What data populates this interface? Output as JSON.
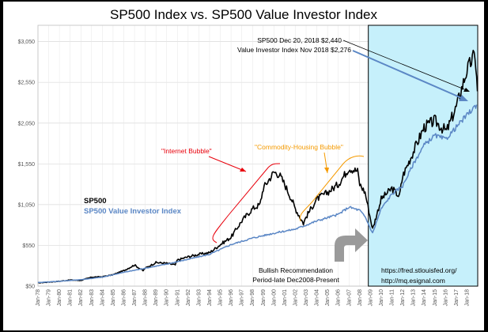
{
  "chart_data": {
    "type": "line",
    "title": "SP500 Index vs. SP500 Value Investor Index",
    "xlabel": "",
    "ylabel": "",
    "ylim": [
      50,
      3250
    ],
    "yticks": [
      "$50",
      "$550",
      "$1,050",
      "$1,550",
      "$2,050",
      "$2,550",
      "$3,050"
    ],
    "ytick_values": [
      50,
      550,
      1050,
      1550,
      2050,
      2550,
      3050
    ],
    "x_range": [
      1978.0,
      2019.0
    ],
    "grid": true,
    "xticks": [
      "Jan-78",
      "Jan-79",
      "Jan-80",
      "Jan-81",
      "Jan-82",
      "Jan-83",
      "Jan-84",
      "Jan-85",
      "Jan-86",
      "Jan-87",
      "Jan-88",
      "Jan-89",
      "Jan-90",
      "Jan-91",
      "Jan-92",
      "Jan-93",
      "Jan-94",
      "Jan-95",
      "Jan-96",
      "Jan-97",
      "Jan-98",
      "Jan-99",
      "Jan-00",
      "Jan-01",
      "Jan-02",
      "Jan-03",
      "Jan-04",
      "Jan-05",
      "Jan-06",
      "Jan-07",
      "Jan-08",
      "Jan-09",
      "Jan-10",
      "Jan-11",
      "Jan-12",
      "Jan-13",
      "Jan-14",
      "Jan-15",
      "Jan-16",
      "Jan-17",
      "Jan-18"
    ],
    "series": [
      {
        "name": "SP500",
        "color": "#000000",
        "x": [
          1978,
          1979,
          1980,
          1981,
          1982,
          1983,
          1984,
          1985,
          1986,
          1987,
          1987.8,
          1988,
          1989,
          1990,
          1990.8,
          1991,
          1992,
          1993,
          1994,
          1995,
          1996,
          1997,
          1998,
          1998.7,
          1999,
          2000,
          2000.5,
          2001,
          2001.7,
          2002,
          2002.75,
          2003,
          2004,
          2005,
          2006,
          2007,
          2007.8,
          2008,
          2008.5,
          2009.2,
          2010,
          2011,
          2011.7,
          2012,
          2013,
          2014,
          2015,
          2015.6,
          2016.1,
          2017,
          2018,
          2018.75,
          2018.97
        ],
        "y": [
          90,
          100,
          110,
          125,
          120,
          160,
          165,
          190,
          240,
          310,
          240,
          270,
          340,
          330,
          310,
          370,
          410,
          440,
          460,
          560,
          650,
          850,
          1000,
          1050,
          1250,
          1450,
          1420,
          1300,
          1100,
          1000,
          820,
          900,
          1120,
          1200,
          1300,
          1500,
          1460,
          1300,
          1200,
          750,
          1120,
          1250,
          1150,
          1400,
          1700,
          2000,
          2080,
          2000,
          1950,
          2250,
          2700,
          2900,
          2440
        ]
      },
      {
        "name": "SP500 Value Investor Index",
        "color": "#5b87c5",
        "x": [
          1978,
          1980,
          1982,
          1984,
          1986,
          1988,
          1990,
          1992,
          1994,
          1996,
          1998,
          2000,
          2002,
          2003,
          2004,
          2006,
          2007,
          2008,
          2008.5,
          2009.2,
          2010,
          2011,
          2012,
          2013,
          2014,
          2015,
          2016,
          2017,
          2018,
          2018.9
        ],
        "y": [
          95,
          110,
          130,
          160,
          220,
          270,
          320,
          380,
          440,
          560,
          640,
          700,
          750,
          800,
          850,
          930,
          1020,
          980,
          900,
          700,
          1000,
          1180,
          1280,
          1550,
          1780,
          1900,
          1850,
          2000,
          2150,
          2276
        ]
      }
    ],
    "annotations": {
      "internet_bubble": "\"Internet Bubble\"",
      "commodity_bubble": "\"Commodity-Housing Bubble\"",
      "sp500_callout": "SP500 Dec 20, 2018 $2,440",
      "value_callout": "Value Investor Index Nov 2018 $2,276",
      "bullish_line1": "Bullish Recommendation",
      "bullish_line2": "Period-late Dec2008-Present",
      "source1": "https://fred.stlouisfed.org/",
      "source2": "http://mq.esignal.com"
    },
    "legend": [
      "SP500",
      "SP500 Value Investor Index"
    ],
    "highlight_region": {
      "from": 2008.8,
      "to": 2019.0,
      "color": "#c6f0fb"
    }
  }
}
